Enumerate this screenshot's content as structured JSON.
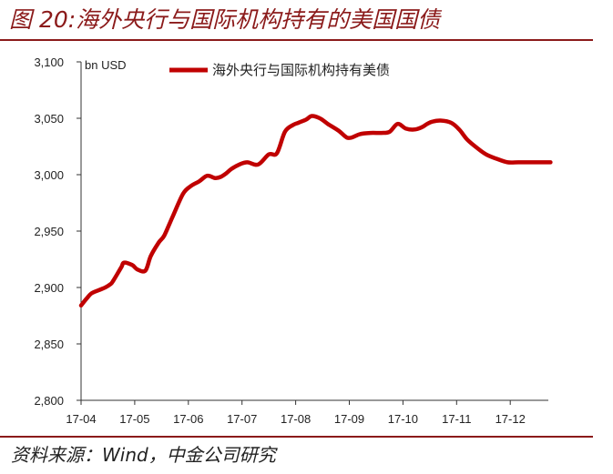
{
  "title": "图 20:海外央行与国际机构持有的美国国债",
  "source": "资料来源：Wind，中金公司研究",
  "colors": {
    "accent": "#8b1a1a",
    "series": "#c00000",
    "axis": "#333333"
  },
  "chart_data": {
    "type": "line",
    "unit": "bn USD",
    "ylim": [
      2800,
      3100
    ],
    "yticks": [
      "3,100",
      "3,050",
      "3,000",
      "2,950",
      "2,900",
      "2,850",
      "2,800"
    ],
    "ytick_values": [
      3100,
      3050,
      3000,
      2950,
      2900,
      2850,
      2800
    ],
    "xticks": [
      "17-04",
      "17-05",
      "17-06",
      "17-07",
      "17-08",
      "17-09",
      "17-10",
      "17-11",
      "17-12"
    ],
    "grid": false,
    "legend_position": "top",
    "series": [
      {
        "name": "海外央行与国际机构持有美债",
        "x": [
          0,
          0.1,
          0.2,
          0.35,
          0.45,
          0.55,
          0.6,
          0.75,
          0.8,
          0.95,
          1.05,
          1.2,
          1.3,
          1.45,
          1.55,
          1.7,
          1.9,
          2.05,
          2.2,
          2.35,
          2.5,
          2.6,
          2.7,
          2.8,
          2.95,
          3.1,
          3.3,
          3.5,
          3.65,
          3.8,
          3.95,
          4.05,
          4.2,
          4.3,
          4.45,
          4.6,
          4.8,
          4.95,
          5.05,
          5.2,
          5.4,
          5.6,
          5.75,
          5.9,
          6.05,
          6.2,
          6.35,
          6.45,
          6.55,
          6.7,
          6.9,
          7.05,
          7.2,
          7.4,
          7.55,
          7.75,
          7.95,
          8.15,
          8.35,
          8.55,
          8.75
        ],
        "values": [
          2884,
          2890,
          2895,
          2898,
          2900,
          2903,
          2906,
          2918,
          2922,
          2920,
          2916,
          2915,
          2928,
          2940,
          2946,
          2962,
          2983,
          2990,
          2994,
          2999,
          2997,
          2998,
          3001,
          3005,
          3009,
          3011,
          3009,
          3018,
          3019,
          3038,
          3044,
          3046,
          3049,
          3052,
          3050,
          3045,
          3039,
          3033,
          3033,
          3036,
          3037,
          3037,
          3038,
          3045,
          3041,
          3040,
          3042,
          3045,
          3047,
          3048,
          3046,
          3040,
          3031,
          3023,
          3018,
          3014,
          3011,
          3011,
          3011,
          3011,
          3011
        ]
      }
    ]
  }
}
